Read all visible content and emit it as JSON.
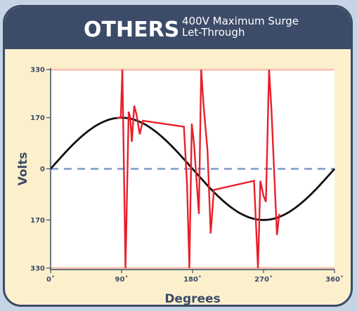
{
  "header": {
    "title": "OTHERS",
    "subtitle_line1": "400V Maximum Surge",
    "subtitle_line2": "Let-Through"
  },
  "colors": {
    "background": "#c5d5e6",
    "panel": "#fcf0cc",
    "header": "#3b4b68",
    "plot_bg": "#ffffff",
    "limit_line": "#f6c3ae",
    "zero_line": "#7c9ac9",
    "sine": "#111111",
    "surge": "#e8202a",
    "axis_text": "#3b4b68"
  },
  "chart_data": {
    "type": "line",
    "title": "",
    "xlabel": "Degrees",
    "ylabel": "Volts",
    "xlim": [
      0,
      360
    ],
    "ylim": [
      -335,
      335
    ],
    "x_ticks": [
      0,
      90,
      180,
      270,
      360
    ],
    "x_tick_labels": [
      "0˚",
      "90˚",
      "180˚",
      "270˚",
      "360˚"
    ],
    "y_ticks": [
      330,
      170,
      0,
      -170,
      -330
    ],
    "y_tick_labels": [
      "330",
      "170",
      "0",
      "170",
      "330"
    ],
    "limit_lines": [
      330,
      -330
    ],
    "zero_line": 0,
    "series": [
      {
        "style": "sine",
        "amplitude": 170,
        "period_degrees": 360
      },
      {
        "style": "surge",
        "points": [
          [
            84,
            170
          ],
          [
            89,
            170
          ],
          [
            91,
            330
          ],
          [
            95,
            -330
          ],
          [
            99,
            190
          ],
          [
            101,
            170
          ],
          [
            103,
            90
          ],
          [
            106,
            210
          ],
          [
            109,
            180
          ],
          [
            113,
            115
          ],
          [
            117,
            160
          ],
          [
            169,
            140
          ],
          [
            173,
            -50
          ],
          [
            176,
            -330
          ],
          [
            179,
            150
          ],
          [
            182,
            80
          ],
          [
            188,
            -150
          ],
          [
            191,
            330
          ],
          [
            194,
            210
          ],
          [
            199,
            60
          ],
          [
            203,
            -215
          ],
          [
            207,
            -70
          ],
          [
            258,
            -40
          ],
          [
            263,
            -330
          ],
          [
            266,
            -40
          ],
          [
            270,
            -90
          ],
          [
            273,
            -110
          ],
          [
            277,
            330
          ],
          [
            280,
            200
          ],
          [
            284,
            -40
          ],
          [
            287,
            -220
          ],
          [
            290,
            -150
          ]
        ]
      }
    ]
  }
}
